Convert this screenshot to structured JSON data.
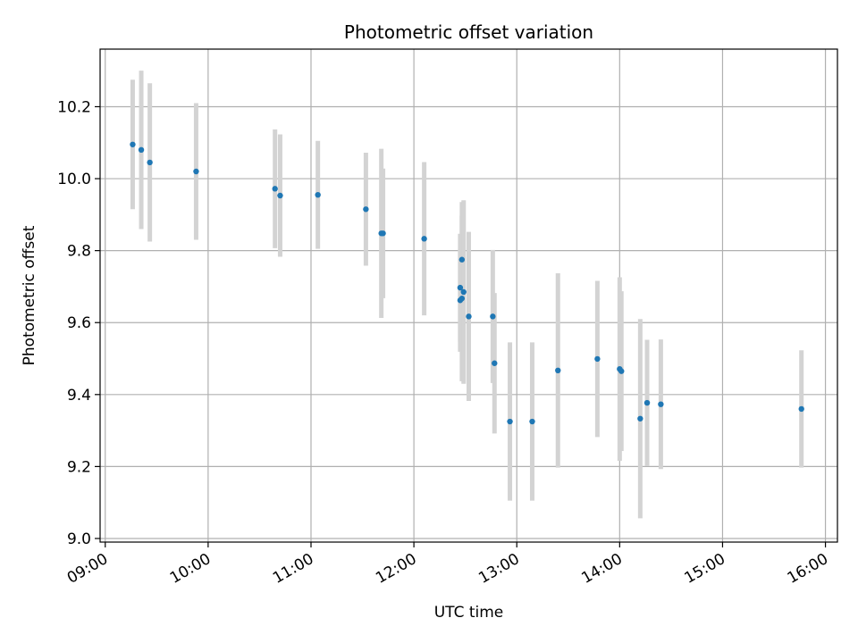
{
  "chart_data": {
    "type": "scatter",
    "title": "Photometric offset variation",
    "xlabel": "UTC time",
    "ylabel": "Photometric offset",
    "x_ticks": [
      "09:00",
      "10:00",
      "11:00",
      "12:00",
      "13:00",
      "14:00",
      "15:00",
      "16:00"
    ],
    "y_ticks": [
      "9.0",
      "9.2",
      "9.4",
      "9.6",
      "9.8",
      "10.0",
      "10.2"
    ],
    "xlim": [
      "08:57",
      "16:07"
    ],
    "ylim": [
      8.99,
      10.36
    ],
    "grid": true,
    "errorbar_color": "#d3d3d3",
    "marker_color": "#1f77b4",
    "series": [
      {
        "x": [
          "09:16",
          "09:21",
          "09:26",
          "09:53",
          "10:39",
          "10:42",
          "11:04",
          "11:32",
          "11:41",
          "11:42",
          "12:06",
          "12:27",
          "12:27",
          "12:28",
          "12:28",
          "12:29",
          "12:32",
          "12:46",
          "12:47",
          "12:56",
          "13:09",
          "13:24",
          "13:47",
          "14:00",
          "14:01",
          "14:12",
          "14:16",
          "14:24",
          "15:46"
        ],
        "y": [
          10.095,
          10.08,
          10.045,
          10.02,
          9.972,
          9.953,
          9.955,
          9.915,
          9.848,
          9.848,
          9.833,
          9.662,
          9.697,
          9.775,
          9.667,
          9.685,
          9.617,
          9.617,
          9.487,
          9.325,
          9.325,
          9.467,
          9.499,
          9.471,
          9.465,
          9.333,
          9.377,
          9.373,
          9.36
        ],
        "yerr": [
          0.18,
          0.22,
          0.22,
          0.19,
          0.165,
          0.17,
          0.15,
          0.157,
          0.235,
          0.18,
          0.213,
          0.143,
          0.15,
          0.16,
          0.23,
          0.255,
          0.235,
          0.185,
          0.195,
          0.22,
          0.22,
          0.27,
          0.217,
          0.255,
          0.222,
          0.277,
          0.175,
          0.18,
          0.163
        ]
      }
    ]
  }
}
